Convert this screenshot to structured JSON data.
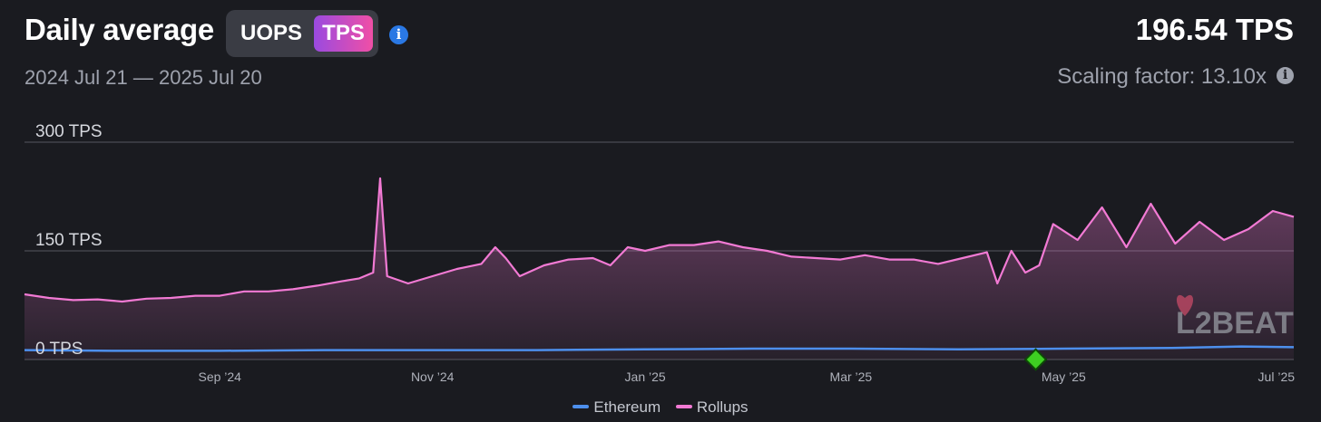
{
  "header": {
    "title": "Daily average",
    "toggle": {
      "option_uops": "UOPS",
      "option_tps": "TPS",
      "selected": "TPS"
    },
    "date_range": "2024 Jul 21 — 2025 Jul 20",
    "current_value": "196.54 TPS",
    "scaling_factor": "Scaling factor: 13.10x"
  },
  "watermark": "L2BEAT",
  "colors": {
    "ethereum": "#4d8fec",
    "rollups": "#f27ad4",
    "marker": "#3ecf22",
    "toggle_gradient_start": "#9a4ae0",
    "toggle_gradient_end": "#f04fa6"
  },
  "chart_data": {
    "type": "area",
    "x_range": [
      "2024-07-21",
      "2025-07-20"
    ],
    "ylim": [
      0,
      300
    ],
    "y_ticks": [
      {
        "value": 0,
        "label": "0 TPS"
      },
      {
        "value": 150,
        "label": "150 TPS"
      },
      {
        "value": 300,
        "label": "300 TPS"
      }
    ],
    "x_ticks": [
      {
        "date": "2024-09-15",
        "label": "Sep ’24"
      },
      {
        "date": "2024-11-15",
        "label": "Nov ’24"
      },
      {
        "date": "2025-01-15",
        "label": "Jan ’25"
      },
      {
        "date": "2025-03-15",
        "label": "Mar ’25"
      },
      {
        "date": "2025-05-15",
        "label": "May ’25"
      },
      {
        "date": "2025-07-15",
        "label": "Jul ’25"
      }
    ],
    "grid": true,
    "legend_position": "bottom-center",
    "marker": {
      "date": "2025-05-07",
      "value": 0,
      "shape": "diamond"
    },
    "series": [
      {
        "name": "Ethereum",
        "points": [
          [
            "2024-07-21",
            13
          ],
          [
            "2024-08-15",
            12
          ],
          [
            "2024-09-15",
            12
          ],
          [
            "2024-10-15",
            13
          ],
          [
            "2024-11-15",
            13
          ],
          [
            "2024-12-15",
            13
          ],
          [
            "2025-01-15",
            14
          ],
          [
            "2025-02-15",
            15
          ],
          [
            "2025-03-15",
            15
          ],
          [
            "2025-04-15",
            14
          ],
          [
            "2025-05-15",
            15
          ],
          [
            "2025-06-15",
            16
          ],
          [
            "2025-07-05",
            18
          ],
          [
            "2025-07-20",
            17
          ]
        ]
      },
      {
        "name": "Rollups",
        "points": [
          [
            "2024-07-21",
            90
          ],
          [
            "2024-07-28",
            85
          ],
          [
            "2024-08-04",
            82
          ],
          [
            "2024-08-11",
            83
          ],
          [
            "2024-08-18",
            80
          ],
          [
            "2024-08-25",
            84
          ],
          [
            "2024-09-01",
            85
          ],
          [
            "2024-09-08",
            88
          ],
          [
            "2024-09-15",
            88
          ],
          [
            "2024-09-22",
            94
          ],
          [
            "2024-09-29",
            94
          ],
          [
            "2024-10-06",
            97
          ],
          [
            "2024-10-13",
            102
          ],
          [
            "2024-10-20",
            108
          ],
          [
            "2024-10-25",
            112
          ],
          [
            "2024-10-29",
            120
          ],
          [
            "2024-10-31",
            250
          ],
          [
            "2024-11-02",
            115
          ],
          [
            "2024-11-08",
            105
          ],
          [
            "2024-11-15",
            115
          ],
          [
            "2024-11-22",
            125
          ],
          [
            "2024-11-29",
            132
          ],
          [
            "2024-12-03",
            155
          ],
          [
            "2024-12-06",
            140
          ],
          [
            "2024-12-10",
            115
          ],
          [
            "2024-12-17",
            130
          ],
          [
            "2024-12-24",
            138
          ],
          [
            "2024-12-31",
            140
          ],
          [
            "2025-01-05",
            130
          ],
          [
            "2025-01-10",
            155
          ],
          [
            "2025-01-15",
            150
          ],
          [
            "2025-01-22",
            158
          ],
          [
            "2025-01-29",
            158
          ],
          [
            "2025-02-05",
            163
          ],
          [
            "2025-02-12",
            155
          ],
          [
            "2025-02-19",
            150
          ],
          [
            "2025-02-26",
            142
          ],
          [
            "2025-03-05",
            140
          ],
          [
            "2025-03-12",
            138
          ],
          [
            "2025-03-19",
            144
          ],
          [
            "2025-03-26",
            138
          ],
          [
            "2025-04-02",
            138
          ],
          [
            "2025-04-09",
            132
          ],
          [
            "2025-04-16",
            140
          ],
          [
            "2025-04-23",
            148
          ],
          [
            "2025-04-26",
            105
          ],
          [
            "2025-04-30",
            150
          ],
          [
            "2025-05-04",
            120
          ],
          [
            "2025-05-08",
            130
          ],
          [
            "2025-05-12",
            187
          ],
          [
            "2025-05-19",
            165
          ],
          [
            "2025-05-26",
            210
          ],
          [
            "2025-06-02",
            155
          ],
          [
            "2025-06-09",
            215
          ],
          [
            "2025-06-16",
            160
          ],
          [
            "2025-06-23",
            190
          ],
          [
            "2025-06-30",
            165
          ],
          [
            "2025-07-07",
            180
          ],
          [
            "2025-07-14",
            205
          ],
          [
            "2025-07-20",
            197
          ]
        ]
      }
    ]
  }
}
